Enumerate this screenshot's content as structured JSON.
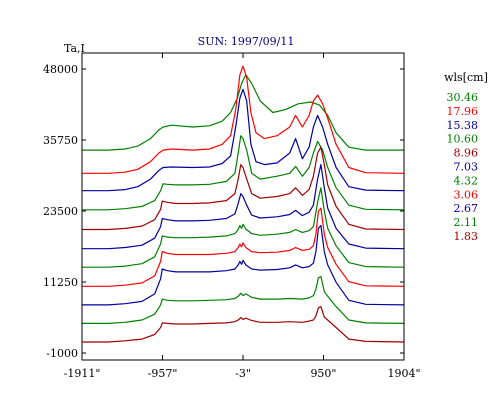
{
  "chart_data": {
    "type": "line",
    "title": "SUN: 1997/09/11",
    "ylabel": "Ta,I",
    "xlabel": "",
    "legend_title": "wls[cm]",
    "xlim": [
      -1911,
      1904
    ],
    "ylim": [
      -1000,
      48000
    ],
    "x_ticks": [
      {
        "value": -1911,
        "label": "-1911\""
      },
      {
        "value": -957,
        "label": "-957\""
      },
      {
        "value": -3,
        "label": "-3\""
      },
      {
        "value": 950,
        "label": "950\""
      },
      {
        "value": 1904,
        "label": "1904\""
      }
    ],
    "y_ticks": [
      {
        "value": 48000,
        "label": "48000"
      },
      {
        "value": 35750,
        "label": "35750"
      },
      {
        "value": 23500,
        "label": "23500"
      },
      {
        "value": 11250,
        "label": "11250"
      },
      {
        "value": -1000,
        "label": "-1000"
      }
    ],
    "grid": false,
    "legend_position": "right",
    "series": [
      {
        "name": "30.46",
        "color": "#008000",
        "baseline": 34000,
        "x": [
          -1911,
          -1600,
          -1400,
          -1250,
          -1100,
          -1000,
          -950,
          -850,
          -600,
          -400,
          -250,
          -150,
          -70,
          -20,
          30,
          100,
          200,
          350,
          500,
          650,
          800,
          900,
          1000,
          1100,
          1250,
          1450,
          1904
        ],
        "y": [
          34000,
          34000,
          34200,
          34700,
          36000,
          37500,
          38000,
          38300,
          38000,
          38200,
          39000,
          40500,
          43000,
          45500,
          47000,
          45500,
          42500,
          40500,
          41000,
          42000,
          42300,
          41800,
          40000,
          37000,
          34500,
          34000,
          34000
        ]
      },
      {
        "name": "17.96",
        "color": "#ff0000",
        "baseline": 30000,
        "x": [
          -1911,
          -1600,
          -1400,
          -1250,
          -1100,
          -1000,
          -950,
          -850,
          -600,
          -400,
          -250,
          -150,
          -90,
          -40,
          -3,
          40,
          90,
          150,
          250,
          400,
          550,
          620,
          700,
          780,
          830,
          880,
          940,
          1000,
          1100,
          1250,
          1450,
          1904
        ],
        "y": [
          30000,
          30000,
          30200,
          30700,
          32000,
          33500,
          34000,
          34200,
          34000,
          34200,
          35000,
          36500,
          41000,
          47000,
          48500,
          46500,
          40500,
          37000,
          36000,
          36500,
          38000,
          40000,
          38000,
          40000,
          42500,
          43500,
          42000,
          39500,
          35000,
          31000,
          30100,
          30000
        ]
      },
      {
        "name": "15.38",
        "color": "#0000a0",
        "baseline": 27000,
        "x": [
          -1911,
          -1600,
          -1400,
          -1250,
          -1100,
          -1000,
          -950,
          -850,
          -600,
          -400,
          -250,
          -150,
          -90,
          -40,
          -3,
          40,
          90,
          150,
          250,
          400,
          550,
          620,
          700,
          780,
          830,
          880,
          940,
          1000,
          1100,
          1250,
          1450,
          1904
        ],
        "y": [
          27000,
          27000,
          27200,
          27700,
          29000,
          30500,
          31000,
          31100,
          31000,
          31100,
          31700,
          33000,
          38000,
          43000,
          44500,
          42500,
          35000,
          32000,
          31500,
          31800,
          33500,
          36000,
          32500,
          34500,
          38000,
          40000,
          38000,
          35000,
          31000,
          27700,
          27100,
          27000
        ]
      },
      {
        "name": "10.60",
        "color": "#008000",
        "baseline": 23700,
        "x": [
          -1911,
          -1600,
          -1400,
          -1200,
          -1050,
          -980,
          -950,
          -900,
          -800,
          -600,
          -400,
          -200,
          -100,
          -60,
          -30,
          -3,
          40,
          100,
          200,
          400,
          550,
          620,
          700,
          780,
          830,
          880,
          940,
          1000,
          1100,
          1250,
          1450,
          1904
        ],
        "y": [
          23700,
          23700,
          23900,
          24300,
          25300,
          27000,
          28200,
          28100,
          28000,
          28000,
          28100,
          28600,
          30000,
          33500,
          36500,
          36000,
          34000,
          30000,
          29000,
          29500,
          30000,
          31200,
          29500,
          31000,
          33500,
          35500,
          34000,
          31000,
          27500,
          24500,
          23800,
          23700
        ]
      },
      {
        "name": "8.96",
        "color": "#a00000",
        "baseline": 20300,
        "x": [
          -1911,
          -1600,
          -1400,
          -1200,
          -1050,
          -980,
          -960,
          -900,
          -800,
          -600,
          -400,
          -200,
          -100,
          -60,
          -30,
          -3,
          40,
          100,
          200,
          400,
          550,
          620,
          700,
          780,
          830,
          880,
          920,
          960,
          1000,
          1100,
          1250,
          1450,
          1904
        ],
        "y": [
          20300,
          20300,
          20500,
          20900,
          22000,
          23800,
          25200,
          25000,
          24800,
          24800,
          24900,
          25300,
          26500,
          29000,
          31500,
          31000,
          29000,
          26500,
          25700,
          26000,
          26500,
          27500,
          26200,
          27200,
          29500,
          33500,
          34500,
          31500,
          28000,
          24300,
          21200,
          20400,
          20300
        ]
      },
      {
        "name": "7.03",
        "color": "#0000a0",
        "baseline": 17000,
        "x": [
          -1911,
          -1600,
          -1400,
          -1200,
          -1050,
          -980,
          -960,
          -900,
          -800,
          -600,
          -400,
          -200,
          -100,
          -60,
          -30,
          -3,
          40,
          100,
          200,
          400,
          550,
          620,
          700,
          780,
          830,
          880,
          920,
          960,
          1000,
          1100,
          1250,
          1450,
          1904
        ],
        "y": [
          17000,
          17000,
          17200,
          17600,
          18800,
          20800,
          22200,
          22000,
          21800,
          21800,
          21900,
          22200,
          23000,
          24800,
          26500,
          26000,
          24500,
          22800,
          22300,
          22500,
          22900,
          23600,
          22700,
          23300,
          24500,
          29000,
          31500,
          27500,
          24000,
          20500,
          17800,
          17100,
          17000
        ]
      },
      {
        "name": "4.32",
        "color": "#008000",
        "baseline": 13800,
        "x": [
          -1911,
          -1600,
          -1400,
          -1200,
          -1050,
          -980,
          -960,
          -900,
          -800,
          -600,
          -400,
          -200,
          -100,
          -60,
          -40,
          -20,
          -3,
          30,
          100,
          200,
          400,
          550,
          620,
          700,
          780,
          830,
          880,
          920,
          960,
          1000,
          1100,
          1250,
          1450,
          1904
        ],
        "y": [
          13800,
          13800,
          14000,
          14400,
          15600,
          17800,
          19200,
          19000,
          18900,
          18900,
          19000,
          19200,
          19600,
          20300,
          21000,
          20500,
          21200,
          20400,
          19600,
          19300,
          19500,
          19800,
          20300,
          19800,
          20100,
          20800,
          25000,
          27500,
          23500,
          20500,
          17500,
          14600,
          13900,
          13800
        ]
      },
      {
        "name": "3.06",
        "color": "#ff0000",
        "baseline": 10500,
        "x": [
          -1911,
          -1600,
          -1400,
          -1200,
          -1050,
          -980,
          -960,
          -900,
          -800,
          -600,
          -400,
          -200,
          -100,
          -60,
          -40,
          -20,
          -3,
          30,
          100,
          200,
          400,
          550,
          620,
          700,
          780,
          830,
          860,
          890,
          920,
          960,
          1000,
          1100,
          1250,
          1450,
          1904
        ],
        "y": [
          10500,
          10500,
          10700,
          11100,
          12300,
          14800,
          16500,
          16200,
          16000,
          16000,
          16000,
          16200,
          16500,
          17200,
          17800,
          17300,
          18000,
          17200,
          16500,
          16300,
          16400,
          16700,
          17200,
          16700,
          16900,
          17500,
          19500,
          23500,
          24000,
          19500,
          17200,
          14300,
          11300,
          10600,
          10500
        ]
      },
      {
        "name": "2.67",
        "color": "#0000a0",
        "baseline": 7300,
        "x": [
          -1911,
          -1600,
          -1400,
          -1200,
          -1050,
          -980,
          -960,
          -900,
          -800,
          -600,
          -400,
          -200,
          -100,
          -60,
          -40,
          -20,
          -3,
          30,
          100,
          200,
          400,
          550,
          620,
          700,
          780,
          830,
          860,
          890,
          920,
          960,
          1000,
          1100,
          1250,
          1450,
          1904
        ],
        "y": [
          7300,
          7300,
          7500,
          7900,
          9200,
          11800,
          13500,
          13200,
          13000,
          13000,
          13000,
          13200,
          13500,
          14200,
          14800,
          14300,
          15000,
          14200,
          13500,
          13300,
          13400,
          13700,
          14200,
          13700,
          13900,
          14500,
          16500,
          20500,
          21000,
          16500,
          14200,
          11200,
          8100,
          7400,
          7300
        ]
      },
      {
        "name": "2.11",
        "color": "#008000",
        "baseline": 4100,
        "x": [
          -1911,
          -1600,
          -1400,
          -1200,
          -1050,
          -980,
          -960,
          -900,
          -800,
          -600,
          -400,
          -200,
          -100,
          -60,
          -30,
          -3,
          30,
          100,
          200,
          400,
          550,
          700,
          780,
          830,
          860,
          890,
          920,
          960,
          1000,
          1100,
          1250,
          1450,
          1904
        ],
        "y": [
          4100,
          4100,
          4300,
          4700,
          5700,
          7300,
          8300,
          8100,
          8000,
          8000,
          8100,
          8200,
          8400,
          8800,
          9300,
          8900,
          9200,
          8600,
          8300,
          8300,
          8400,
          8300,
          8500,
          8900,
          10000,
          12000,
          12200,
          9600,
          8800,
          7000,
          4700,
          4200,
          4100
        ]
      },
      {
        "name": "1.83",
        "color": "#a00000",
        "baseline": 900,
        "x": [
          -1911,
          -1600,
          -1400,
          -1200,
          -1050,
          -980,
          -960,
          -900,
          -800,
          -600,
          -400,
          -200,
          -100,
          -60,
          -30,
          -3,
          30,
          100,
          200,
          400,
          550,
          700,
          780,
          830,
          860,
          890,
          920,
          960,
          1000,
          1100,
          1250,
          1450,
          1904
        ],
        "y": [
          900,
          900,
          1100,
          1400,
          2200,
          3400,
          4200,
          4100,
          4000,
          4000,
          4100,
          4200,
          4400,
          4700,
          5100,
          4800,
          5000,
          4600,
          4300,
          4300,
          4400,
          4300,
          4500,
          4700,
          5400,
          6800,
          7000,
          5200,
          4700,
          3400,
          1400,
          1000,
          900
        ]
      }
    ]
  }
}
